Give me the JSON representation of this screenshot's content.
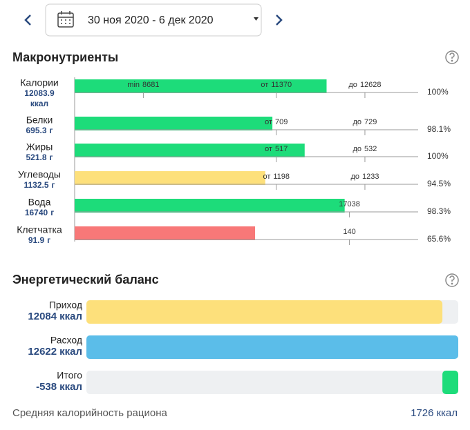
{
  "header": {
    "date_range": "30 ноя 2020 - 6 дек 2020"
  },
  "macronutrients": {
    "title": "Макронутриенты",
    "rows": [
      {
        "name": "Калории",
        "value": 12083.9,
        "unit": "ккал",
        "color": "#1ddc7a",
        "markers": [
          {
            "prefix": "min",
            "value": 8681
          },
          {
            "prefix": "от",
            "value": 11370
          },
          {
            "prefix": "до",
            "value": 12628
          }
        ],
        "percent": "100%"
      },
      {
        "name": "Белки",
        "value": 695.3,
        "unit": "г",
        "color": "#1ddc7a",
        "markers": [
          {
            "prefix": "от",
            "value": 709
          },
          {
            "prefix": "до",
            "value": 729
          }
        ],
        "percent": "98.1%"
      },
      {
        "name": "Жиры",
        "value": 521.8,
        "unit": "г",
        "color": "#1ddc7a",
        "markers": [
          {
            "prefix": "от",
            "value": 517
          },
          {
            "prefix": "до",
            "value": 532
          }
        ],
        "percent": "100%"
      },
      {
        "name": "Углеводы",
        "value": 1132.5,
        "unit": "г",
        "color": "#fde07b",
        "markers": [
          {
            "prefix": "от",
            "value": 1198
          },
          {
            "prefix": "до",
            "value": 1233
          }
        ],
        "percent": "94.5%"
      },
      {
        "name": "Вода",
        "value": 16740,
        "unit": "г",
        "color": "#1ddc7a",
        "markers": [
          {
            "value": 17038
          }
        ],
        "percent": "98.3%"
      },
      {
        "name": "Клетчатка",
        "value": 91.9,
        "unit": "г",
        "color": "#f87878",
        "markers": [
          {
            "value": 140
          }
        ],
        "percent": "65.6%"
      }
    ]
  },
  "energy_balance": {
    "title": "Энергетический баланс",
    "rows": [
      {
        "name": "Приход",
        "value": 12084,
        "unit": "ккал",
        "color": "#fde07b"
      },
      {
        "name": "Расход",
        "value": 12622,
        "unit": "ккал",
        "color": "#5bbde9"
      },
      {
        "name": "Итого",
        "value": -538,
        "unit": "ккал",
        "color": "#1ddc7a"
      }
    ]
  },
  "footer": {
    "label": "Средняя калорийность рациона",
    "value": 1726,
    "unit": "ккал"
  }
}
